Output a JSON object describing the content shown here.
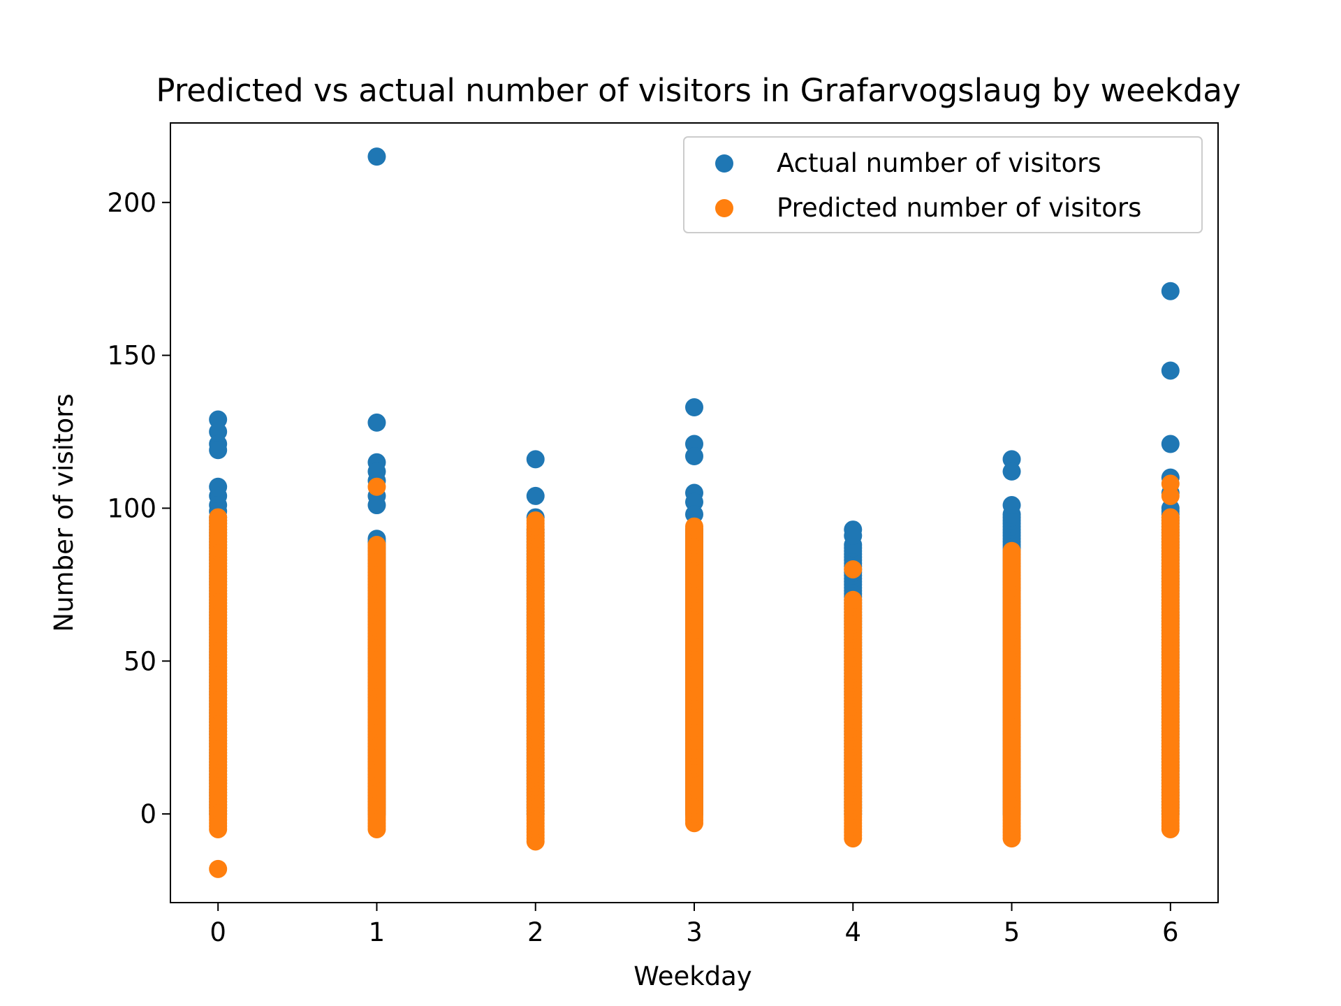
{
  "chart_data": {
    "type": "scatter",
    "title": "Predicted vs actual number of visitors in Grafarvogslaug by weekday",
    "xlabel": "Weekday",
    "ylabel": "Number of visitors",
    "xlim": [
      -0.3,
      6.3
    ],
    "ylim": [
      -29,
      226
    ],
    "xticks": [
      0,
      1,
      2,
      3,
      4,
      5,
      6
    ],
    "yticks": [
      0,
      50,
      100,
      150,
      200
    ],
    "grid": false,
    "legend_position": "upper right",
    "series": [
      {
        "name": "Actual number of visitors",
        "color": "#1f77b4",
        "columns": [
          {
            "x": 0,
            "range": [
              0,
              97
            ],
            "outliers": [
              129,
              125,
              121,
              119,
              107,
              104,
              101,
              99
            ]
          },
          {
            "x": 1,
            "range": [
              0,
              90
            ],
            "outliers": [
              215,
              128,
              115,
              112,
              109,
              104,
              101
            ]
          },
          {
            "x": 2,
            "range": [
              0,
              93
            ],
            "outliers": [
              116,
              104,
              97
            ]
          },
          {
            "x": 3,
            "range": [
              0,
              93
            ],
            "outliers": [
              133,
              121,
              117,
              105,
              102,
              98
            ]
          },
          {
            "x": 4,
            "range": [
              0,
              88
            ],
            "outliers": [
              93,
              91
            ]
          },
          {
            "x": 5,
            "range": [
              0,
              98
            ],
            "outliers": [
              116,
              112,
              101
            ]
          },
          {
            "x": 6,
            "range": [
              0,
              100
            ],
            "outliers": [
              171,
              145,
              121,
              110,
              105
            ]
          }
        ]
      },
      {
        "name": "Predicted number of visitors",
        "color": "#ff7f0e",
        "columns": [
          {
            "x": 0,
            "range": [
              -5,
              97
            ],
            "outliers": [
              -18
            ]
          },
          {
            "x": 1,
            "range": [
              -5,
              88
            ],
            "outliers": [
              107
            ]
          },
          {
            "x": 2,
            "range": [
              -9,
              96
            ],
            "outliers": []
          },
          {
            "x": 3,
            "range": [
              -3,
              94
            ],
            "outliers": []
          },
          {
            "x": 4,
            "range": [
              -8,
              70
            ],
            "outliers": [
              80
            ]
          },
          {
            "x": 5,
            "range": [
              -8,
              86
            ],
            "outliers": []
          },
          {
            "x": 6,
            "range": [
              -5,
              97
            ],
            "outliers": [
              108,
              104
            ]
          }
        ]
      }
    ]
  }
}
